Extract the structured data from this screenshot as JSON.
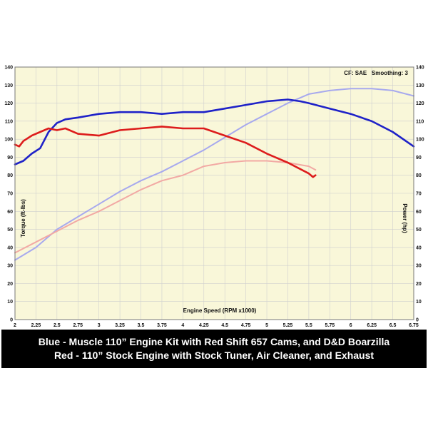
{
  "colors": {
    "plot_bg": "#f9f7d9",
    "grid": "#cfcfcf",
    "modified_torque": "#1f22c8",
    "modified_power": "#a7a9ee",
    "stock_torque": "#dd1c1c",
    "stock_power": "#f2a9a4"
  },
  "caption": {
    "line1": "Blue - Muscle 110” Engine Kit with Red Shift 657 Cams, and D&D Boarzilla",
    "line2": "Red - 110” Stock Engine with Stock Tuner, Air Cleaner, and Exhaust"
  },
  "chart_data": {
    "type": "line",
    "annotation": "CF: SAE   Smoothing: 3",
    "xlabel": "Engine Speed (RPM x1000)",
    "ylabel_left": "Torque (ft-lbs)",
    "ylabel_right": "Power (hp)",
    "xlim": [
      2,
      6.75
    ],
    "ylim": [
      0,
      140
    ],
    "grid": true,
    "legend": "none",
    "x_ticks": [
      "2",
      "2.25",
      "2.5",
      "2.75",
      "3",
      "3.25",
      "3.5",
      "3.75",
      "4",
      "4.25",
      "4.5",
      "4.75",
      "5",
      "5.25",
      "5.5",
      "5.75",
      "6",
      "6.25",
      "6.5",
      "6.75"
    ],
    "y_ticks": [
      "0",
      "10",
      "20",
      "30",
      "40",
      "50",
      "60",
      "70",
      "80",
      "90",
      "100",
      "110",
      "120",
      "130",
      "140"
    ],
    "series": [
      {
        "key": "modified_torque",
        "x": [
          2.0,
          2.05,
          2.1,
          2.15,
          2.2,
          2.3,
          2.4,
          2.5,
          2.6,
          2.75,
          3.0,
          3.25,
          3.5,
          3.75,
          4.0,
          4.25,
          4.5,
          4.75,
          5.0,
          5.25,
          5.4,
          5.5,
          5.75,
          6.0,
          6.25,
          6.5,
          6.75
        ],
        "y": [
          86,
          87,
          88,
          90,
          92,
          95,
          104,
          109,
          111,
          112,
          114,
          115,
          115,
          114,
          115,
          115,
          117,
          119,
          121,
          122,
          121,
          120,
          117,
          114,
          110,
          104,
          96
        ]
      },
      {
        "key": "modified_power",
        "x": [
          2.0,
          2.25,
          2.5,
          2.75,
          3.0,
          3.25,
          3.5,
          3.75,
          4.0,
          4.25,
          4.5,
          4.75,
          5.0,
          5.25,
          5.5,
          5.75,
          6.0,
          6.25,
          6.5,
          6.75
        ],
        "y": [
          33,
          40,
          50,
          57,
          64,
          71,
          77,
          82,
          88,
          94,
          101,
          108,
          114,
          120,
          125,
          127,
          128,
          128,
          127,
          124
        ]
      },
      {
        "key": "stock_torque",
        "x": [
          2.0,
          2.05,
          2.1,
          2.2,
          2.3,
          2.4,
          2.5,
          2.6,
          2.75,
          3.0,
          3.25,
          3.5,
          3.75,
          4.0,
          4.25,
          4.5,
          4.75,
          5.0,
          5.25,
          5.5,
          5.55,
          5.58
        ],
        "y": [
          97,
          96,
          99,
          102,
          104,
          106,
          105,
          106,
          103,
          102,
          105,
          106,
          107,
          106,
          106,
          102,
          98,
          92,
          87,
          81,
          79,
          80
        ]
      },
      {
        "key": "stock_power",
        "x": [
          2.0,
          2.25,
          2.5,
          2.75,
          3.0,
          3.25,
          3.5,
          3.75,
          4.0,
          4.25,
          4.5,
          4.75,
          5.0,
          5.25,
          5.5,
          5.58
        ],
        "y": [
          37,
          43,
          49,
          55,
          60,
          66,
          72,
          77,
          80,
          85,
          87,
          88,
          88,
          87,
          85,
          83
        ]
      }
    ]
  }
}
